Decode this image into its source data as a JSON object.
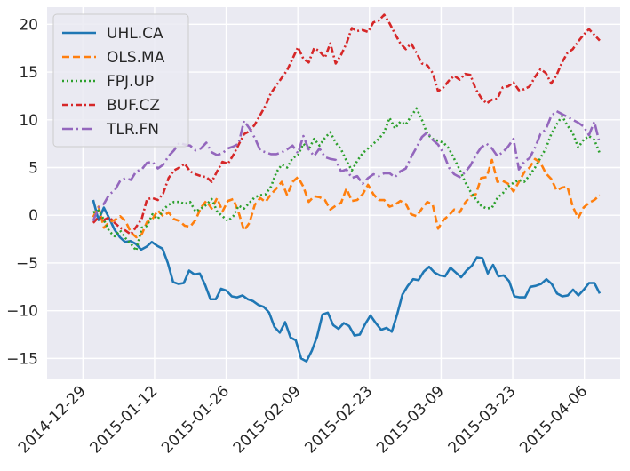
{
  "chart_data": {
    "type": "line",
    "title": "",
    "xlabel": "",
    "ylabel": "",
    "x_ticks": [
      "2014-12-29",
      "2015-01-12",
      "2015-01-26",
      "2015-02-09",
      "2015-02-23",
      "2015-03-09",
      "2015-03-23",
      "2015-04-06"
    ],
    "y_ticks": [
      -15,
      -10,
      -5,
      0,
      5,
      10,
      15,
      20
    ],
    "x_range": [
      "2014-12-22",
      "2015-04-13"
    ],
    "x_start": "2014-12-31",
    "ylim": [
      -17.2,
      21.8
    ],
    "grid": true,
    "legend_position": "top-left",
    "background": "#eaeaf2",
    "series": [
      {
        "name": "UHL.CA",
        "color": "#1f77b4",
        "dash": "solid",
        "values": [
          1.6,
          -0.5,
          0.8,
          -0.3,
          -1.5,
          -2.3,
          -2.8,
          -2.7,
          -3.0,
          -3.6,
          -3.3,
          -2.8,
          -3.2,
          -3.5,
          -5.0,
          -7.0,
          -7.2,
          -7.1,
          -5.8,
          -6.2,
          -6.1,
          -7.3,
          -8.8,
          -8.8,
          -7.7,
          -7.9,
          -8.5,
          -8.6,
          -8.4,
          -8.8,
          -9.0,
          -9.4,
          -9.6,
          -10.2,
          -11.7,
          -12.3,
          -11.2,
          -12.8,
          -13.1,
          -15.0,
          -15.3,
          -14.2,
          -12.7,
          -10.4,
          -10.2,
          -11.5,
          -11.9,
          -11.3,
          -11.6,
          -12.6,
          -12.5,
          -11.4,
          -10.5,
          -11.3,
          -12.0,
          -11.8,
          -12.2,
          -10.4,
          -8.3,
          -7.4,
          -6.7,
          -6.8,
          -5.9,
          -5.4,
          -6.0,
          -6.3,
          -6.4,
          -5.5,
          -6.0,
          -6.5,
          -5.8,
          -5.3,
          -4.4,
          -4.5,
          -6.1,
          -5.2,
          -6.4,
          -6.3,
          -6.9,
          -8.5,
          -8.6,
          -8.6,
          -7.5,
          -7.4,
          -7.2,
          -6.7,
          -7.2,
          -8.2,
          -8.5,
          -8.4,
          -7.8,
          -8.4,
          -7.8,
          -7.1,
          -7.1,
          -8.2
        ]
      },
      {
        "name": "OLS.MA",
        "color": "#ff7f0e",
        "dash": "dashed",
        "values": [
          -0.2,
          0.9,
          -1.3,
          -0.7,
          -0.5,
          -0.1,
          -0.6,
          -1.8,
          -2.3,
          -2.0,
          -0.7,
          -0.4,
          0.5,
          -0.1,
          0.3,
          -0.4,
          -0.6,
          -1.1,
          -1.2,
          -0.5,
          0.8,
          1.5,
          0.7,
          1.8,
          0.4,
          1.5,
          1.7,
          0.3,
          -1.6,
          -0.8,
          1.1,
          1.8,
          1.4,
          2.2,
          2.8,
          3.5,
          2.1,
          3.5,
          4.0,
          3.0,
          1.4,
          2.0,
          1.9,
          1.6,
          0.6,
          1.0,
          1.3,
          2.8,
          1.5,
          1.6,
          2.2,
          3.2,
          2.2,
          1.6,
          1.6,
          0.9,
          1.1,
          1.5,
          1.2,
          0.1,
          -0.1,
          0.7,
          1.4,
          1.1,
          -1.4,
          -0.5,
          0.0,
          0.6,
          0.3,
          1.3,
          2.0,
          2.2,
          3.9,
          4.0,
          5.8,
          3.5,
          3.6,
          3.3,
          2.5,
          3.5,
          4.5,
          5.0,
          5.9,
          5.5,
          4.4,
          3.8,
          2.6,
          2.9,
          3.0,
          0.9,
          -0.3,
          0.8,
          1.3,
          1.6,
          2.1
        ]
      },
      {
        "name": "FPJ.UP",
        "color": "#2ca02c",
        "dash": "dotted",
        "values": [
          0.3,
          0.5,
          -0.5,
          -1.7,
          -2.2,
          -1.6,
          -2.4,
          -3.0,
          -3.7,
          -1.3,
          -1.1,
          0.1,
          -0.4,
          0.6,
          1.1,
          1.4,
          1.4,
          1.2,
          1.4,
          0.4,
          0.7,
          1.1,
          1.7,
          0.4,
          -0.1,
          -0.6,
          -0.1,
          1.0,
          0.7,
          1.3,
          1.9,
          2.1,
          2.2,
          3.0,
          4.5,
          5.3,
          5.0,
          6.0,
          6.3,
          7.5,
          6.9,
          8.0,
          7.3,
          8.1,
          8.7,
          7.6,
          6.9,
          5.7,
          4.7,
          5.7,
          6.5,
          7.0,
          7.5,
          8.0,
          8.7,
          10.2,
          9.1,
          9.8,
          9.5,
          10.4,
          11.2,
          10.0,
          8.5,
          8.0,
          7.8,
          7.6,
          7.0,
          5.9,
          4.8,
          3.5,
          2.5,
          1.7,
          1.0,
          0.7,
          0.8,
          1.8,
          2.3,
          3.0,
          3.4,
          3.7,
          3.5,
          4.2,
          5.0,
          6.0,
          7.0,
          8.5,
          9.5,
          10.4,
          9.4,
          8.6,
          7.1,
          7.9,
          8.3,
          7.9,
          6.5
        ]
      },
      {
        "name": "BUF.CZ",
        "color": "#d62728",
        "dash": "dashdot",
        "values": [
          -0.8,
          -0.2,
          -0.5,
          -0.2,
          -0.8,
          -1.3,
          -1.6,
          -2.0,
          -1.2,
          -0.4,
          1.7,
          1.8,
          1.6,
          2.3,
          3.9,
          4.7,
          5.0,
          5.4,
          4.6,
          4.3,
          4.1,
          4.0,
          3.5,
          4.6,
          5.6,
          5.4,
          6.3,
          7.4,
          8.5,
          8.8,
          9.5,
          10.5,
          11.5,
          12.8,
          13.6,
          14.4,
          15.2,
          16.4,
          17.6,
          16.4,
          16.0,
          17.5,
          17.2,
          16.5,
          18.0,
          15.9,
          16.8,
          18.0,
          19.6,
          19.3,
          19.4,
          19.2,
          20.2,
          20.4,
          21.0,
          20.1,
          19.0,
          18.0,
          17.4,
          18.0,
          17.0,
          15.9,
          15.7,
          14.9,
          13.0,
          13.4,
          14.1,
          14.6,
          14.2,
          14.8,
          14.7,
          13.2,
          12.3,
          11.7,
          12.1,
          12.2,
          13.4,
          13.5,
          13.9,
          13.1,
          13.2,
          13.5,
          14.5,
          15.3,
          14.9,
          13.8,
          14.7,
          16.0,
          17.0,
          17.4,
          18.2,
          18.9,
          19.5,
          18.9,
          18.3
        ]
      },
      {
        "name": "TLR.FN",
        "color": "#9467bd",
        "dash": "longdash",
        "values": [
          -0.6,
          0.8,
          1.2,
          2.2,
          2.6,
          3.6,
          3.9,
          3.7,
          4.6,
          4.8,
          5.5,
          5.6,
          4.9,
          5.3,
          6.2,
          6.8,
          7.6,
          7.4,
          7.3,
          6.8,
          7.0,
          7.6,
          6.6,
          6.3,
          6.5,
          7.0,
          7.2,
          7.5,
          9.9,
          9.1,
          8.1,
          6.8,
          6.6,
          6.4,
          6.4,
          6.6,
          6.9,
          7.3,
          6.5,
          8.3,
          6.9,
          6.2,
          7.0,
          6.1,
          5.9,
          5.8,
          4.6,
          4.8,
          3.9,
          4.1,
          3.3,
          3.9,
          4.3,
          4.1,
          4.4,
          4.4,
          4.0,
          4.6,
          4.9,
          6.1,
          7.1,
          8.2,
          8.7,
          7.9,
          7.4,
          6.5,
          5.0,
          4.3,
          4.0,
          4.5,
          5.2,
          6.3,
          7.1,
          7.5,
          7.0,
          6.2,
          6.6,
          7.2,
          8.0,
          4.8,
          5.6,
          6.0,
          7.1,
          8.5,
          9.0,
          10.4,
          10.9,
          10.6,
          10.3,
          10.0,
          9.7,
          9.3,
          8.4,
          9.8,
          7.5
        ]
      }
    ]
  }
}
